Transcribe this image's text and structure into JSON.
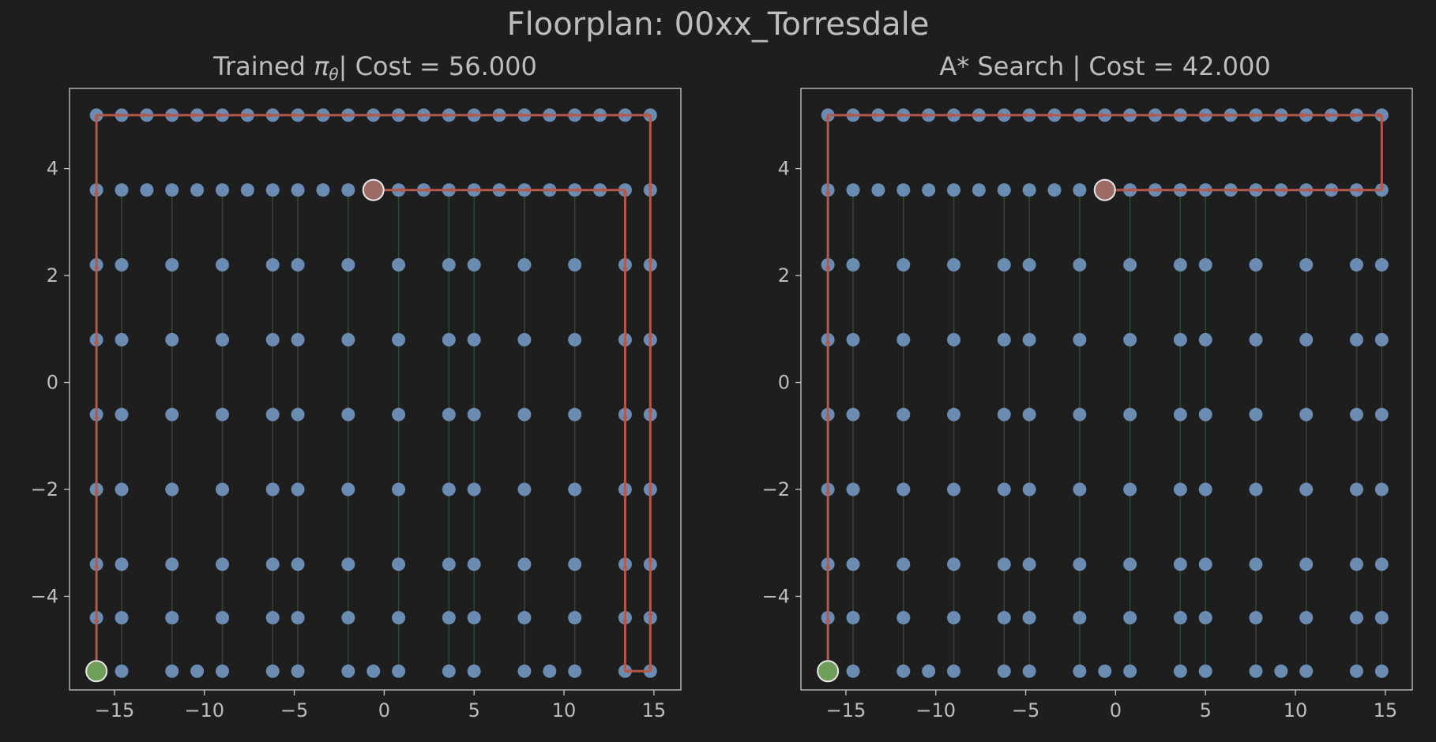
{
  "figure": {
    "suptitle": "Floorplan: 00xx_Torresdale"
  },
  "colors": {
    "background": "#1e1e1e",
    "node": "#6a8cb3",
    "edge": "#2e4a2e",
    "path": "#b5574a",
    "start": "#6f9e58",
    "goal": "#9e6a65",
    "text": "#bdbdbd"
  },
  "chart_data": [
    {
      "type": "scatter",
      "title_prefix": "Trained ",
      "title_symbol": "π",
      "title_subscript": "θ",
      "title_suffix": "| Cost = 56.000",
      "xlim": [
        -17.5,
        16.5
      ],
      "ylim": [
        -5.75,
        5.5
      ],
      "xticks": [
        -15,
        -10,
        -5,
        0,
        5,
        10,
        15
      ],
      "yticks": [
        -4,
        -2,
        0,
        2,
        4
      ],
      "xtick_labels": [
        "−15",
        "−10",
        "−5",
        "0",
        "5",
        "10",
        "15"
      ],
      "ytick_labels": [
        "−4",
        "−2",
        "0",
        "2",
        "4"
      ],
      "start": [
        -16,
        -5.4
      ],
      "goal": [
        -0.6,
        3.6
      ],
      "path": [
        [
          -16,
          -5.4
        ],
        [
          -16,
          -4.4
        ],
        [
          -16,
          -3.4
        ],
        [
          -16,
          -2
        ],
        [
          -16,
          -0.6
        ],
        [
          -16,
          0.8
        ],
        [
          -16,
          2.2
        ],
        [
          -16,
          3.6
        ],
        [
          -16,
          5
        ],
        [
          -14.6,
          5
        ],
        [
          -13.2,
          5
        ],
        [
          -11.8,
          5
        ],
        [
          -10.4,
          5
        ],
        [
          -9,
          5
        ],
        [
          -7.6,
          5
        ],
        [
          -6.2,
          5
        ],
        [
          -4.8,
          5
        ],
        [
          -3.4,
          5
        ],
        [
          -2,
          5
        ],
        [
          -0.6,
          5
        ],
        [
          0.8,
          5
        ],
        [
          2.2,
          5
        ],
        [
          3.6,
          5
        ],
        [
          5,
          5
        ],
        [
          6.4,
          5
        ],
        [
          7.8,
          5
        ],
        [
          9.2,
          5
        ],
        [
          10.6,
          5
        ],
        [
          12,
          5
        ],
        [
          13.4,
          5
        ],
        [
          14.8,
          5
        ],
        [
          14.8,
          3.6
        ],
        [
          14.8,
          2.2
        ],
        [
          14.8,
          0.8
        ],
        [
          14.8,
          -0.6
        ],
        [
          14.8,
          -2
        ],
        [
          14.8,
          -3.4
        ],
        [
          14.8,
          -4.4
        ],
        [
          14.8,
          -5.4
        ],
        [
          13.4,
          -5.4
        ],
        [
          13.4,
          -4.4
        ],
        [
          13.4,
          -3.4
        ],
        [
          13.4,
          -2
        ],
        [
          13.4,
          -0.6
        ],
        [
          13.4,
          0.8
        ],
        [
          13.4,
          2.2
        ],
        [
          13.4,
          3.6
        ],
        [
          12,
          3.6
        ],
        [
          10.6,
          3.6
        ],
        [
          9.2,
          3.6
        ],
        [
          7.8,
          3.6
        ],
        [
          6.4,
          3.6
        ],
        [
          5,
          3.6
        ],
        [
          3.6,
          3.6
        ],
        [
          2.2,
          3.6
        ],
        [
          0.8,
          3.6
        ],
        [
          -0.6,
          3.6
        ]
      ]
    },
    {
      "type": "scatter",
      "title_prefix": "A* Search | Cost = 42.000",
      "title_symbol": "",
      "title_subscript": "",
      "title_suffix": "",
      "xlim": [
        -17.5,
        16.5
      ],
      "ylim": [
        -5.75,
        5.5
      ],
      "xticks": [
        -15,
        -10,
        -5,
        0,
        5,
        10,
        15
      ],
      "yticks": [
        -4,
        -2,
        0,
        2,
        4
      ],
      "xtick_labels": [
        "−15",
        "−10",
        "−5",
        "0",
        "5",
        "10",
        "15"
      ],
      "ytick_labels": [
        "−4",
        "−2",
        "0",
        "2",
        "4"
      ],
      "start": [
        -16,
        -5.4
      ],
      "goal": [
        -0.6,
        3.6
      ],
      "path": [
        [
          -16,
          -5.4
        ],
        [
          -16,
          -4.4
        ],
        [
          -16,
          -3.4
        ],
        [
          -16,
          -2
        ],
        [
          -16,
          -0.6
        ],
        [
          -16,
          0.8
        ],
        [
          -16,
          2.2
        ],
        [
          -16,
          3.6
        ],
        [
          -16,
          5
        ],
        [
          -14.6,
          5
        ],
        [
          -13.2,
          5
        ],
        [
          -11.8,
          5
        ],
        [
          -10.4,
          5
        ],
        [
          -9,
          5
        ],
        [
          -7.6,
          5
        ],
        [
          -6.2,
          5
        ],
        [
          -4.8,
          5
        ],
        [
          -3.4,
          5
        ],
        [
          -2,
          5
        ],
        [
          -0.6,
          5
        ],
        [
          0.8,
          5
        ],
        [
          2.2,
          5
        ],
        [
          3.6,
          5
        ],
        [
          5,
          5
        ],
        [
          6.4,
          5
        ],
        [
          7.8,
          5
        ],
        [
          9.2,
          5
        ],
        [
          10.6,
          5
        ],
        [
          12,
          5
        ],
        [
          13.4,
          5
        ],
        [
          14.8,
          5
        ],
        [
          14.8,
          3.6
        ],
        [
          13.4,
          3.6
        ],
        [
          12,
          3.6
        ],
        [
          10.6,
          3.6
        ],
        [
          9.2,
          3.6
        ],
        [
          7.8,
          3.6
        ],
        [
          6.4,
          3.6
        ],
        [
          5,
          3.6
        ],
        [
          3.6,
          3.6
        ],
        [
          2.2,
          3.6
        ],
        [
          0.8,
          3.6
        ],
        [
          -0.6,
          3.6
        ]
      ]
    }
  ],
  "graph": {
    "top_row_y": 5,
    "top_row_x": [
      -16,
      -14.6,
      -13.2,
      -11.8,
      -10.4,
      -9,
      -7.6,
      -6.2,
      -4.8,
      -3.4,
      -2,
      -0.6,
      0.8,
      2.2,
      3.6,
      5,
      6.4,
      7.8,
      9.2,
      10.6,
      12,
      13.4,
      14.8
    ],
    "second_row_y": 3.6,
    "second_row_x": [
      -16,
      -14.6,
      -13.2,
      -11.8,
      -10.4,
      -9,
      -7.6,
      -6.2,
      -4.8,
      -3.4,
      -2,
      -0.6,
      0.8,
      2.2,
      3.6,
      5,
      6.4,
      7.8,
      9.2,
      10.6,
      12,
      13.4,
      14.8
    ],
    "column_x": [
      -16,
      -14.6,
      -11.8,
      -9,
      -6.2,
      -4.8,
      -2,
      0.8,
      3.6,
      5,
      7.8,
      10.6,
      13.4,
      14.8
    ],
    "column_y": [
      2.2,
      0.8,
      -0.6,
      -2,
      -3.4,
      -4.4
    ],
    "bottom_row_y": -5.4,
    "bottom_row_x": [
      -16,
      -14.6,
      -11.8,
      -10.4,
      -9,
      -6.2,
      -4.8,
      -2,
      -0.6,
      0.8,
      3.6,
      5,
      7.8,
      9.2,
      10.6,
      13.4,
      14.8
    ]
  }
}
